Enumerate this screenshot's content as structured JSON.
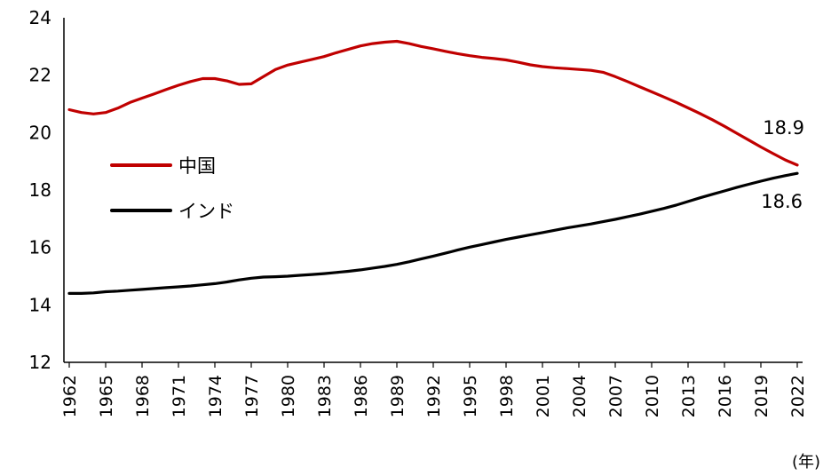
{
  "chart_data": {
    "type": "line",
    "title": "",
    "xlabel": "(年)",
    "ylabel": "",
    "ylim": [
      12,
      24
    ],
    "yticks": [
      12,
      14,
      16,
      18,
      20,
      22,
      24
    ],
    "xlim": [
      1962,
      2022
    ],
    "xtick_labels": [
      "1962",
      "1965",
      "1968",
      "1971",
      "1974",
      "1977",
      "1980",
      "1983",
      "1986",
      "1989",
      "1992",
      "1995",
      "1998",
      "2001",
      "2004",
      "2007",
      "2010",
      "2013",
      "2016",
      "2019",
      "2022"
    ],
    "grid": false,
    "legend_position": "left-middle",
    "series": [
      {
        "name": "中国",
        "color": "#c00000",
        "end_label": "18.9",
        "x": [
          1962,
          1963,
          1964,
          1965,
          1966,
          1967,
          1968,
          1969,
          1970,
          1971,
          1972,
          1973,
          1974,
          1975,
          1976,
          1977,
          1978,
          1979,
          1980,
          1981,
          1982,
          1983,
          1984,
          1985,
          1986,
          1987,
          1988,
          1989,
          1990,
          1991,
          1992,
          1993,
          1994,
          1995,
          1996,
          1997,
          1998,
          1999,
          2000,
          2001,
          2002,
          2003,
          2004,
          2005,
          2006,
          2007,
          2008,
          2009,
          2010,
          2011,
          2012,
          2013,
          2014,
          2015,
          2016,
          2017,
          2018,
          2019,
          2020,
          2021,
          2022
        ],
        "values": [
          20.8,
          20.7,
          20.65,
          20.7,
          20.85,
          21.05,
          21.2,
          21.35,
          21.5,
          21.65,
          21.78,
          21.88,
          21.88,
          21.8,
          21.68,
          21.7,
          21.95,
          22.2,
          22.35,
          22.45,
          22.55,
          22.65,
          22.78,
          22.9,
          23.02,
          23.1,
          23.15,
          23.18,
          23.1,
          23.0,
          22.92,
          22.83,
          22.75,
          22.68,
          22.62,
          22.58,
          22.53,
          22.45,
          22.36,
          22.3,
          22.26,
          22.23,
          22.2,
          22.17,
          22.1,
          21.95,
          21.78,
          21.6,
          21.42,
          21.24,
          21.06,
          20.86,
          20.66,
          20.45,
          20.22,
          19.98,
          19.74,
          19.5,
          19.27,
          19.05,
          18.87
        ]
      },
      {
        "name": "インド",
        "color": "#000000",
        "end_label": "18.6",
        "x": [
          1962,
          1963,
          1964,
          1965,
          1966,
          1967,
          1968,
          1969,
          1970,
          1971,
          1972,
          1973,
          1974,
          1975,
          1976,
          1977,
          1978,
          1979,
          1980,
          1981,
          1982,
          1983,
          1984,
          1985,
          1986,
          1987,
          1988,
          1989,
          1990,
          1991,
          1992,
          1993,
          1994,
          1995,
          1996,
          1997,
          1998,
          1999,
          2000,
          2001,
          2002,
          2003,
          2004,
          2005,
          2006,
          2007,
          2008,
          2009,
          2010,
          2011,
          2012,
          2013,
          2014,
          2015,
          2016,
          2017,
          2018,
          2019,
          2020,
          2021,
          2022
        ],
        "values": [
          14.4,
          14.4,
          14.42,
          14.46,
          14.48,
          14.51,
          14.54,
          14.57,
          14.6,
          14.63,
          14.66,
          14.7,
          14.74,
          14.8,
          14.87,
          14.93,
          14.97,
          14.98,
          15.0,
          15.03,
          15.06,
          15.09,
          15.13,
          15.17,
          15.22,
          15.28,
          15.34,
          15.41,
          15.5,
          15.6,
          15.7,
          15.8,
          15.91,
          16.01,
          16.1,
          16.19,
          16.28,
          16.36,
          16.44,
          16.52,
          16.6,
          16.68,
          16.75,
          16.82,
          16.9,
          16.98,
          17.07,
          17.16,
          17.26,
          17.36,
          17.47,
          17.6,
          17.73,
          17.85,
          17.97,
          18.09,
          18.2,
          18.31,
          18.41,
          18.5,
          18.58
        ]
      }
    ]
  }
}
